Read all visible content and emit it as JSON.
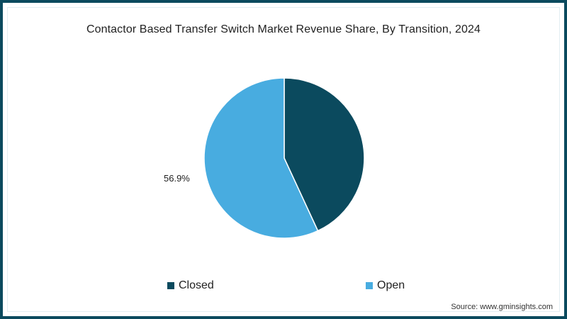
{
  "chart_data": {
    "type": "pie",
    "title": "Contactor Based Transfer Switch Market Revenue Share, By Transition, 2024",
    "categories": [
      "Closed",
      "Open"
    ],
    "values": [
      43.1,
      56.9
    ],
    "units": "%",
    "colors": [
      "#0b4a5e",
      "#48ace0"
    ],
    "data_labels": [
      {
        "category": "Open",
        "text": "56.9%"
      }
    ],
    "legend": {
      "position": "bottom",
      "entries": [
        {
          "label": "Closed",
          "color": "#0b4a5e"
        },
        {
          "label": "Open",
          "color": "#48ace0"
        }
      ]
    },
    "start_angle_deg": 0,
    "direction": "clockwise",
    "source": "Source: www.gminsights.com"
  },
  "title": "Contactor Based Transfer Switch Market Revenue Share, By Transition, 2024",
  "labels": {
    "open_pct": "56.9%"
  },
  "legend": {
    "closed": "Closed",
    "open": "Open"
  },
  "source": "Source: www.gminsights.com"
}
